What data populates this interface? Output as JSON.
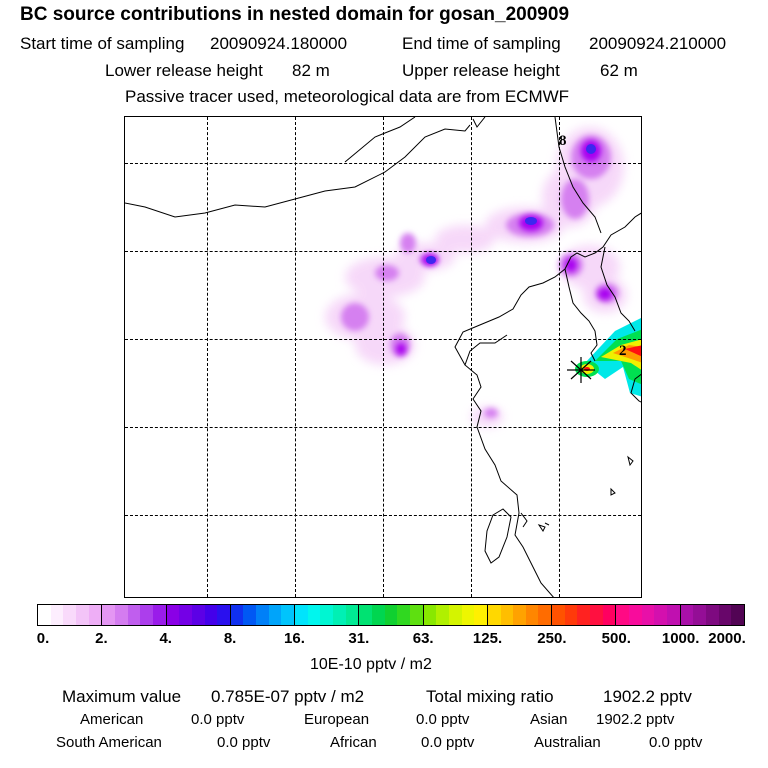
{
  "header": {
    "title": "BC  source contributions in nested domain for gosan_200909",
    "start_label": "Start time of sampling",
    "start_value": "20090924.180000",
    "end_label": "End time of sampling",
    "end_value": "20090924.210000",
    "lower_label": "Lower release height",
    "lower_value": "82 m",
    "upper_label": "Upper release height",
    "upper_value": "62 m",
    "tracer_note": "Passive tracer used, meteorological data are from ECMWF"
  },
  "map": {
    "labels": [
      "8",
      "2"
    ],
    "colors": {
      "light_violet": "#f5d2f8",
      "violet": "#d580f0",
      "purple": "#a800f0",
      "deep_purple": "#7a00e8",
      "blue": "#3c28f0",
      "cyan": "#00e8e8",
      "green": "#00e050",
      "yellow": "#f0f000",
      "orange": "#ff9a00",
      "red": "#ff1010"
    }
  },
  "colorbar": {
    "ticks": [
      "0.",
      "2.",
      "4.",
      "8.",
      "16.",
      "31.",
      "63.",
      "125.",
      "250.",
      "500.",
      "1000.",
      "2000."
    ],
    "segments": [
      [
        "#ffffff",
        "#fdeefe",
        "#f9dafb",
        "#f3c4f8",
        "#eeaef6"
      ],
      [
        "#e496f3",
        "#d47cf0",
        "#c05eee",
        "#ac3eec",
        "#9a1cea"
      ],
      [
        "#8a00e6",
        "#7400e6",
        "#5c00e6",
        "#4400ea",
        "#2a10ee"
      ],
      [
        "#1030f0",
        "#0058f4",
        "#0080f8",
        "#00a4fa",
        "#00c4fc"
      ],
      [
        "#00e4fc",
        "#00f6ee",
        "#00f6d2",
        "#00f0b4",
        "#00ea94"
      ],
      [
        "#00e272",
        "#00d650",
        "#10d030",
        "#30d820",
        "#5ee010"
      ],
      [
        "#88e800",
        "#b0f000",
        "#d4f400",
        "#eef600",
        "#fff000"
      ],
      [
        "#ffd800",
        "#ffbe00",
        "#ffa200",
        "#ff8600",
        "#ff6c00"
      ],
      [
        "#ff5200",
        "#ff3a0a",
        "#ff2220",
        "#ff1040",
        "#ff0060"
      ],
      [
        "#ff0a84",
        "#f80c9c",
        "#e810a8",
        "#d410ae",
        "#c010b0"
      ],
      [
        "#a810a8",
        "#940e96",
        "#7e0a80",
        "#68066a",
        "#520454"
      ]
    ],
    "units": "10E-10 pptv / m2"
  },
  "summary": {
    "max_label": "Maximum value",
    "max_value": "0.785E-07 pptv / m2",
    "total_label": "Total mixing ratio",
    "total_value": "1902.2 pptv",
    "regions": [
      {
        "name": "American",
        "value": "0.0 pptv"
      },
      {
        "name": "European",
        "value": "0.0 pptv"
      },
      {
        "name": "Asian",
        "value": "1902.2 pptv"
      },
      {
        "name": "South American",
        "value": "0.0 pptv"
      },
      {
        "name": "African",
        "value": "0.0 pptv"
      },
      {
        "name": "Australian",
        "value": "0.0 pptv"
      }
    ]
  }
}
